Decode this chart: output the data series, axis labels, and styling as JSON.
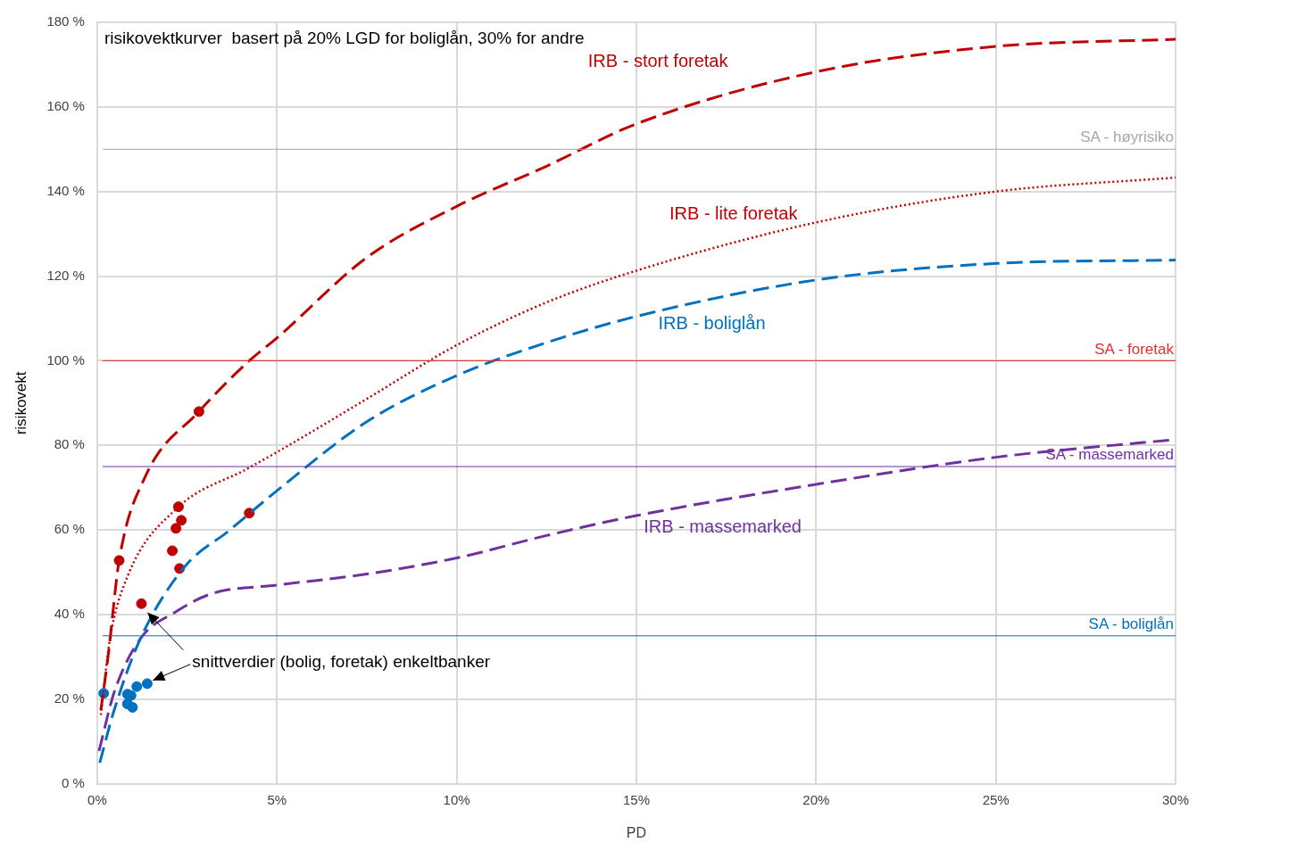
{
  "chart_data": {
    "type": "line",
    "title": "risikovektkurver  basert på 20% LGD for boliglån, 30% for andre",
    "xlabel": "PD",
    "ylabel": "risikovekt",
    "xlim": [
      0,
      30
    ],
    "xticks": [
      {
        "value": 0,
        "label": "0%"
      },
      {
        "value": 5,
        "label": "5%"
      },
      {
        "value": 10,
        "label": "10%"
      },
      {
        "value": 15,
        "label": "15%"
      },
      {
        "value": 20,
        "label": "20%"
      },
      {
        "value": 25,
        "label": "25%"
      },
      {
        "value": 30,
        "label": "30%"
      }
    ],
    "ylim": [
      0,
      180
    ],
    "yticks": [
      {
        "value": 0,
        "label": "0 %"
      },
      {
        "value": 20,
        "label": "20 %"
      },
      {
        "value": 40,
        "label": "40 %"
      },
      {
        "value": 60,
        "label": "60 %"
      },
      {
        "value": 80,
        "label": "80 %"
      },
      {
        "value": 100,
        "label": "100 %"
      },
      {
        "value": 120,
        "label": "120 %"
      },
      {
        "value": 140,
        "label": "140 %"
      },
      {
        "value": 160,
        "label": "160 %"
      },
      {
        "value": 180,
        "label": "180 %"
      }
    ],
    "grid": true,
    "legend": false,
    "series": [
      {
        "name": "IRB - stort foretak",
        "color": "#c00000",
        "line_style": "dashed",
        "marker": "none",
        "x": [
          0.1,
          0.3,
          0.61,
          1.33,
          2.83,
          4.23,
          5,
          7.5,
          10,
          12.5,
          15,
          20,
          25,
          30
        ],
        "values": [
          17.4,
          30,
          52.8,
          72.5,
          88,
          100,
          105.4,
          124.4,
          136.5,
          146,
          156,
          168.3,
          174.3,
          176
        ]
      },
      {
        "name": "IRB - lite foretak",
        "color": "#c00000",
        "line_style": "dotted",
        "marker": "none",
        "x": [
          0.1,
          0.35,
          0.84,
          2.2,
          4.2,
          5,
          7.5,
          10,
          12.5,
          15,
          20,
          25,
          30
        ],
        "values": [
          16.3,
          34,
          49,
          65,
          74.6,
          78.4,
          91,
          103.7,
          113.8,
          121.3,
          132.7,
          140,
          143.3
        ]
      },
      {
        "name": "IRB - boliglån",
        "color": "#0070c0",
        "line_style": "dashed",
        "marker": "none",
        "x": [
          0.07,
          0.47,
          1.2,
          2.43,
          3.66,
          5,
          7.5,
          10,
          12.5,
          15,
          20,
          25,
          30
        ],
        "values": [
          5,
          17.4,
          34.3,
          51.3,
          59.8,
          69.3,
          85.6,
          96.5,
          104.3,
          110.5,
          119.1,
          123,
          123.8
        ]
      },
      {
        "name": "IRB - massemarked",
        "color": "#7030a0",
        "line_style": "dashed",
        "marker": "none",
        "x": [
          0.05,
          0.47,
          1.2,
          2.19,
          3.2,
          5,
          7.5,
          10,
          12.5,
          15,
          20,
          25,
          30
        ],
        "values": [
          7.8,
          21.6,
          34.3,
          40.7,
          45,
          47,
          49.6,
          53.4,
          58.7,
          63.4,
          70.8,
          77.2,
          81.4
        ]
      },
      {
        "type": "scatter",
        "color": "#c00000",
        "marker": "circle",
        "x": [
          0.61,
          2.83,
          2.26,
          2.34,
          2.19,
          2.09,
          2.29,
          1.23,
          4.23
        ],
        "values": [
          52.8,
          88,
          65.5,
          62.3,
          60.4,
          55.1,
          50.9,
          42.6,
          64
        ]
      },
      {
        "type": "scatter",
        "color": "#0070c0",
        "marker": "circle",
        "x": [
          0.18,
          0.84,
          0.94,
          1.1,
          1.39,
          0.84,
          0.98
        ],
        "values": [
          21.4,
          21.2,
          20.9,
          23,
          23.7,
          18.9,
          18.1
        ]
      }
    ],
    "ref_lines": [
      {
        "axis": "y",
        "value": 150,
        "label": "SA - høyrisiko",
        "color": "#a6a6a6"
      },
      {
        "axis": "y",
        "value": 100,
        "label": "SA - foretak",
        "color": "#e03030"
      },
      {
        "axis": "y",
        "value": 75,
        "label": "SA - massemarked",
        "color": "#7030a0"
      },
      {
        "axis": "y",
        "value": 35,
        "label": "SA - boliglån",
        "color": "#0070c0"
      }
    ],
    "annotations": [
      {
        "text": "snittverdier (bolig, foretak) enkeltbanker",
        "x": 1.4,
        "y": 40.5
      }
    ]
  }
}
